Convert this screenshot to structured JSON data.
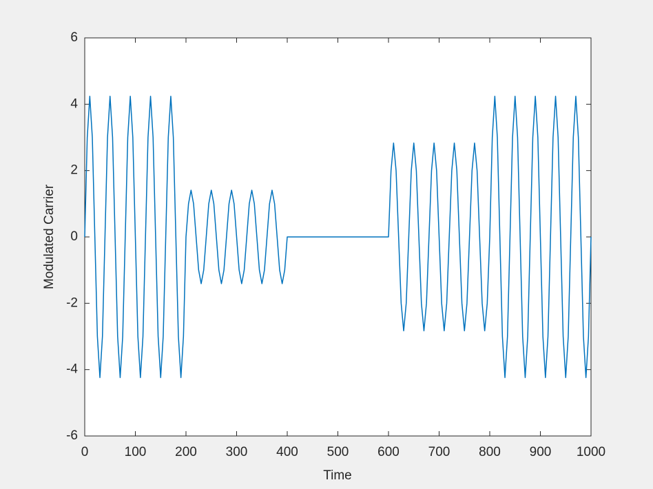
{
  "chart_data": {
    "type": "line",
    "xlabel": "Time",
    "ylabel": "Modulated Carrier",
    "color": "#0072bd",
    "xlim": [
      0,
      1000
    ],
    "xticks": [
      0,
      100,
      200,
      300,
      400,
      500,
      600,
      700,
      800,
      900,
      1000
    ],
    "ylim": [
      -6,
      6
    ],
    "yticks": [
      -6,
      -4,
      -2,
      0,
      2,
      4,
      6
    ],
    "x": [
      0,
      5,
      10,
      15,
      20,
      25,
      30,
      35,
      40,
      45,
      50,
      55,
      60,
      65,
      70,
      75,
      80,
      85,
      90,
      95,
      100,
      105,
      110,
      115,
      120,
      125,
      130,
      135,
      140,
      145,
      150,
      155,
      160,
      165,
      170,
      175,
      180,
      185,
      190,
      195,
      200,
      205,
      210,
      215,
      220,
      225,
      230,
      235,
      240,
      245,
      250,
      255,
      260,
      265,
      270,
      275,
      280,
      285,
      290,
      295,
      300,
      305,
      310,
      315,
      320,
      325,
      330,
      335,
      340,
      345,
      350,
      355,
      360,
      365,
      370,
      375,
      380,
      385,
      390,
      395,
      400,
      405,
      410,
      415,
      420,
      425,
      430,
      435,
      440,
      445,
      450,
      455,
      460,
      465,
      470,
      475,
      480,
      485,
      490,
      495,
      500,
      505,
      510,
      515,
      520,
      525,
      530,
      535,
      540,
      545,
      550,
      555,
      560,
      565,
      570,
      575,
      580,
      585,
      590,
      595,
      600,
      605,
      610,
      615,
      620,
      625,
      630,
      635,
      640,
      645,
      650,
      655,
      660,
      665,
      670,
      675,
      680,
      685,
      690,
      695,
      700,
      705,
      710,
      715,
      720,
      725,
      730,
      735,
      740,
      745,
      750,
      755,
      760,
      765,
      770,
      775,
      780,
      785,
      790,
      795,
      800,
      805,
      810,
      815,
      820,
      825,
      830,
      835,
      840,
      845,
      850,
      855,
      860,
      865,
      870,
      875,
      880,
      885,
      890,
      895,
      900,
      905,
      910,
      915,
      920,
      925,
      930,
      935,
      940,
      945,
      950,
      955,
      960,
      965,
      970,
      975,
      980,
      985,
      990,
      995,
      1000
    ],
    "values": [
      0,
      3,
      4.24,
      3,
      0,
      -3,
      -4.24,
      -3,
      0,
      3,
      4.24,
      3,
      0,
      -3,
      -4.24,
      -3,
      0,
      3,
      4.24,
      3,
      0,
      -3,
      -4.24,
      -3,
      0,
      3,
      4.24,
      3,
      0,
      -3,
      -4.24,
      -3,
      0,
      3,
      4.24,
      3,
      0,
      -3,
      -4.24,
      -3,
      0,
      1,
      1.41,
      1,
      0,
      -1,
      -1.41,
      -1,
      0,
      1,
      1.41,
      1,
      0,
      -1,
      -1.41,
      -1,
      0,
      1,
      1.41,
      1,
      0,
      -1,
      -1.41,
      -1,
      0,
      1,
      1.41,
      1,
      0,
      -1,
      -1.41,
      -1,
      0,
      1,
      1.41,
      1,
      0,
      -1,
      -1.41,
      -1,
      0,
      0,
      0,
      0,
      0,
      0,
      0,
      0,
      0,
      0,
      0,
      0,
      0,
      0,
      0,
      0,
      0,
      0,
      0,
      0,
      0,
      0,
      0,
      0,
      0,
      0,
      0,
      0,
      0,
      0,
      0,
      0,
      0,
      0,
      0,
      0,
      0,
      0,
      0,
      0,
      0,
      2,
      2.83,
      2,
      0,
      -2,
      -2.83,
      -2,
      0,
      2,
      2.83,
      2,
      0,
      -2,
      -2.83,
      -2,
      0,
      2,
      2.83,
      2,
      0,
      -2,
      -2.83,
      -2,
      0,
      2,
      2.83,
      2,
      0,
      -2,
      -2.83,
      -2,
      0,
      2,
      2.83,
      2,
      0,
      -2,
      -2.83,
      -2,
      0,
      3,
      4.24,
      3,
      0,
      -3,
      -4.24,
      -3,
      0,
      3,
      4.24,
      3,
      0,
      -3,
      -4.24,
      -3,
      0,
      3,
      4.24,
      3,
      0,
      -3,
      -4.24,
      -3,
      0,
      3,
      4.24,
      3,
      0,
      -3,
      -4.24,
      -3,
      0,
      3,
      4.24,
      3,
      0,
      -3,
      -4.24,
      -3,
      0
    ]
  }
}
